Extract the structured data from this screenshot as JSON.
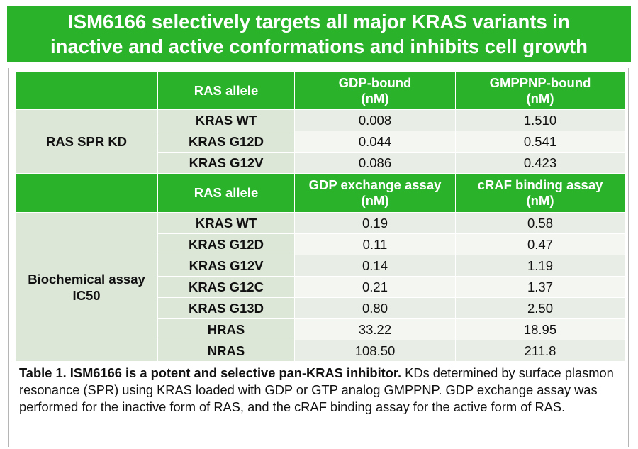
{
  "title": {
    "line1": "ISM6166 selectively targets all major KRAS variants in",
    "line2": "inactive and active conformations and inhibits cell growth"
  },
  "section1": {
    "group_label": "RAS SPR KD",
    "headers": {
      "allele": "RAS allele",
      "col1_line1": "GDP-bound",
      "col1_line2": "(nM)",
      "col2_line1": "GMPPNP-bound",
      "col2_line2": "(nM)"
    },
    "rows": [
      {
        "allele": "KRAS WT",
        "v1": "0.008",
        "v2": "1.510"
      },
      {
        "allele": "KRAS G12D",
        "v1": "0.044",
        "v2": "0.541"
      },
      {
        "allele": "KRAS G12V",
        "v1": "0.086",
        "v2": "0.423"
      }
    ]
  },
  "section2": {
    "group_line1": "Biochemical assay",
    "group_line2": "IC50",
    "headers": {
      "allele": "RAS allele",
      "col1_line1": "GDP exchange assay",
      "col1_line2": "(nM)",
      "col2_line1": "cRAF binding assay",
      "col2_line2": "(nM)"
    },
    "rows": [
      {
        "allele": "KRAS WT",
        "v1": "0.19",
        "v2": "0.58"
      },
      {
        "allele": "KRAS G12D",
        "v1": "0.11",
        "v2": "0.47"
      },
      {
        "allele": "KRAS G12V",
        "v1": "0.14",
        "v2": "1.19"
      },
      {
        "allele": "KRAS G12C",
        "v1": "0.21",
        "v2": "1.37"
      },
      {
        "allele": "KRAS G13D",
        "v1": "0.80",
        "v2": "2.50"
      },
      {
        "allele": "HRAS",
        "v1": "33.22",
        "v2": "18.95"
      },
      {
        "allele": "NRAS",
        "v1": "108.50",
        "v2": "211.8"
      }
    ]
  },
  "caption": {
    "bold": "Table 1. ISM6166 is a potent and selective pan-KRAS inhibitor.",
    "text": " KDs determined by surface plasmon resonance (SPR) using KRAS loaded with GDP or GTP analog GMPPNP. GDP exchange assay was performed for the inactive form of RAS, and the cRAF binding assay for the active form of RAS."
  },
  "colors": {
    "header_green": "#2ab32a",
    "label_bg": "#dde7d8",
    "row_odd": "#e8ede5",
    "row_even": "#f4f6f2"
  }
}
